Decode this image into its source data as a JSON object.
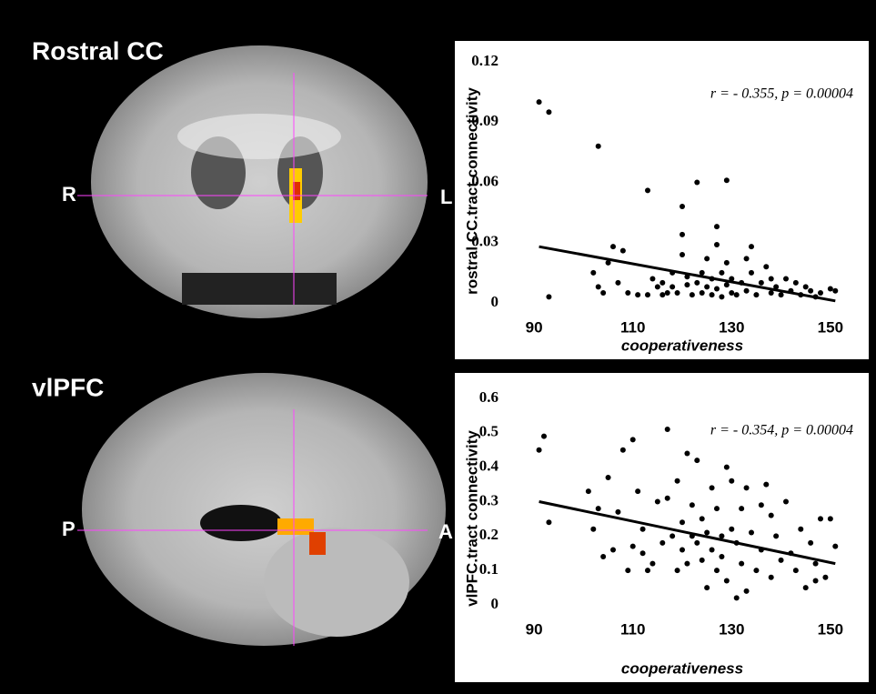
{
  "panels": [
    {
      "title": "Rostral CC",
      "left": "R",
      "right": "L"
    },
    {
      "title": "vlPFC",
      "left": "P",
      "right": "A"
    }
  ],
  "chart_data": [
    {
      "type": "scatter",
      "annotation": "r = - 0.355, p = 0.00004",
      "x_label": "cooperativeness",
      "y_label": "rostral CC.tract connectivity",
      "color": "#000000",
      "x": [
        91,
        93,
        103,
        93,
        102,
        103,
        104,
        105,
        106,
        108,
        107,
        109,
        111,
        113,
        113,
        115,
        116,
        117,
        118,
        119,
        120,
        120,
        120,
        121,
        121,
        122,
        123,
        123,
        124,
        124,
        125,
        125,
        126,
        126,
        127,
        127,
        127,
        128,
        128,
        129,
        129,
        129,
        130,
        130,
        131,
        132,
        133,
        133,
        134,
        134,
        135,
        136,
        137,
        138,
        138,
        139,
        140,
        141,
        142,
        143,
        144,
        145,
        146,
        147,
        148,
        150,
        151,
        118,
        116,
        114
      ],
      "values": [
        0.1,
        0.095,
        0.078,
        0.003,
        0.015,
        0.008,
        0.005,
        0.02,
        0.028,
        0.026,
        0.01,
        0.005,
        0.004,
        0.056,
        0.004,
        0.008,
        0.01,
        0.005,
        0.015,
        0.005,
        0.048,
        0.034,
        0.024,
        0.009,
        0.013,
        0.004,
        0.06,
        0.01,
        0.015,
        0.005,
        0.022,
        0.008,
        0.012,
        0.004,
        0.038,
        0.029,
        0.007,
        0.015,
        0.003,
        0.061,
        0.02,
        0.009,
        0.012,
        0.005,
        0.004,
        0.01,
        0.022,
        0.006,
        0.028,
        0.015,
        0.004,
        0.01,
        0.018,
        0.012,
        0.005,
        0.008,
        0.004,
        0.012,
        0.006,
        0.01,
        0.004,
        0.008,
        0.006,
        0.003,
        0.005,
        0.007,
        0.006,
        0.008,
        0.004,
        0.012
      ],
      "trendline": {
        "x": [
          91,
          151
        ],
        "values": [
          0.028,
          0.001
        ]
      },
      "xlim": [
        85,
        155
      ],
      "ylim": [
        0,
        0.12
      ],
      "xticks": [
        90,
        110,
        130,
        150
      ],
      "yticks": [
        0,
        0.03,
        0.06,
        0.09,
        0.12
      ]
    },
    {
      "type": "scatter",
      "annotation": "r = - 0.354, p = 0.00004",
      "x_label": "cooperativeness",
      "y_label": "vlPFC.tract connectivity",
      "color": "#000000",
      "x": [
        91,
        92,
        93,
        101,
        102,
        103,
        104,
        105,
        106,
        107,
        108,
        109,
        110,
        111,
        112,
        112,
        113,
        114,
        115,
        116,
        117,
        117,
        118,
        119,
        119,
        120,
        120,
        121,
        121,
        122,
        122,
        123,
        123,
        124,
        124,
        125,
        125,
        126,
        126,
        127,
        127,
        128,
        128,
        129,
        129,
        130,
        130,
        131,
        131,
        132,
        132,
        133,
        133,
        134,
        135,
        136,
        136,
        137,
        138,
        138,
        139,
        140,
        141,
        142,
        143,
        144,
        145,
        146,
        147,
        148,
        149,
        150,
        151,
        147,
        110
      ],
      "values": [
        0.45,
        0.49,
        0.24,
        0.33,
        0.22,
        0.28,
        0.14,
        0.37,
        0.16,
        0.27,
        0.45,
        0.1,
        0.48,
        0.33,
        0.22,
        0.15,
        0.1,
        0.12,
        0.3,
        0.18,
        0.51,
        0.31,
        0.2,
        0.36,
        0.1,
        0.24,
        0.16,
        0.44,
        0.12,
        0.29,
        0.2,
        0.42,
        0.18,
        0.25,
        0.13,
        0.05,
        0.21,
        0.34,
        0.16,
        0.28,
        0.1,
        0.2,
        0.14,
        0.4,
        0.07,
        0.36,
        0.22,
        0.02,
        0.18,
        0.28,
        0.12,
        0.34,
        0.04,
        0.21,
        0.1,
        0.29,
        0.16,
        0.35,
        0.26,
        0.08,
        0.2,
        0.13,
        0.3,
        0.15,
        0.1,
        0.22,
        0.05,
        0.18,
        0.12,
        0.25,
        0.08,
        0.25,
        0.17,
        0.07,
        0.17
      ],
      "trendline": {
        "x": [
          91,
          151
        ],
        "values": [
          0.3,
          0.12
        ]
      },
      "xlim": [
        85,
        155
      ],
      "ylim": [
        0,
        0.6
      ],
      "xticks": [
        90,
        110,
        130,
        150
      ],
      "yticks": [
        0,
        0.1,
        0.2,
        0.3,
        0.4,
        0.5,
        0.6
      ]
    }
  ]
}
